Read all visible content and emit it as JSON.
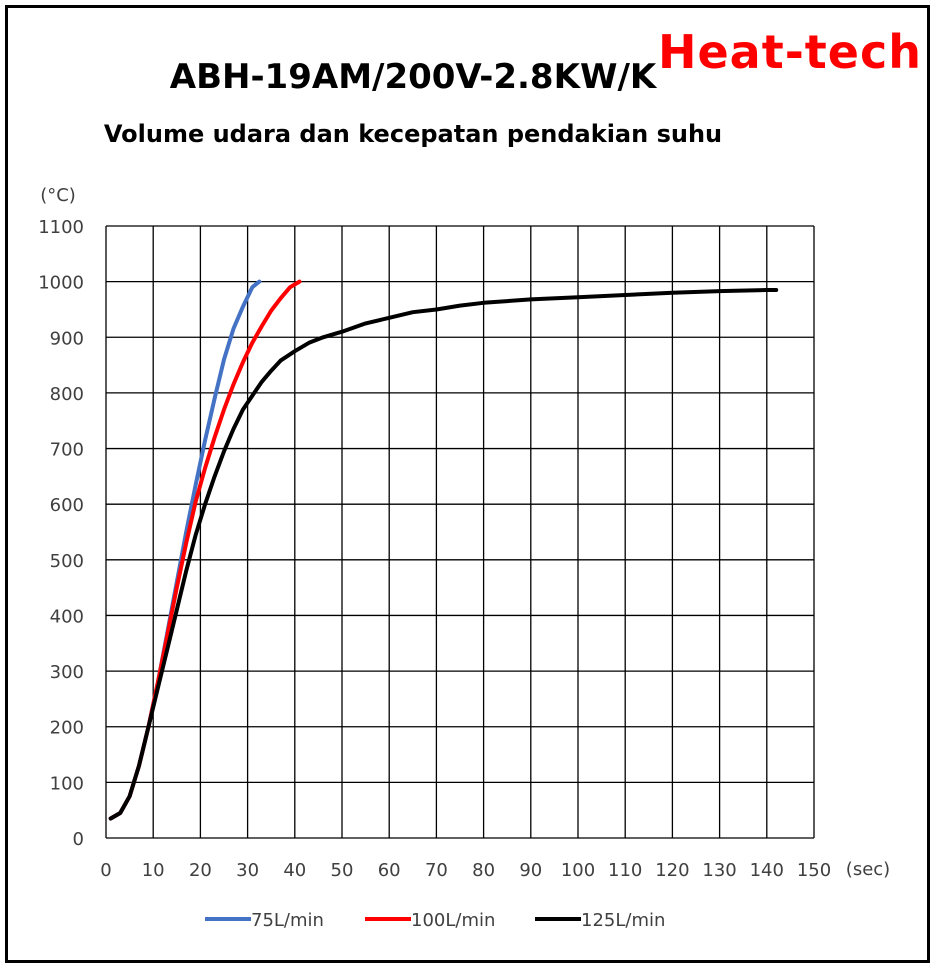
{
  "chart_data": {
    "type": "line",
    "title": "ABH-19AM/200V-2.8KW/K",
    "subtitle": "Volume udara dan kecepatan pendakian suhu",
    "brand": "Heat-tech",
    "brand_color": "#ff0000",
    "ylabel": "(°C)",
    "xlabel": "(sec)",
    "xlim": [
      0,
      150
    ],
    "ylim": [
      0,
      1100
    ],
    "x_ticks": [
      0,
      10,
      20,
      30,
      40,
      50,
      60,
      70,
      80,
      90,
      100,
      110,
      120,
      130,
      140,
      150
    ],
    "y_ticks": [
      0,
      100,
      200,
      300,
      400,
      500,
      600,
      700,
      800,
      900,
      1000,
      1100
    ],
    "grid": true,
    "legend_position": "bottom",
    "series": [
      {
        "name": "75L/min",
        "color": "#4472c4",
        "x": [
          1,
          3,
          5,
          7,
          9,
          11,
          13,
          15,
          17,
          19,
          21,
          23,
          25,
          27,
          29,
          31,
          32.5
        ],
        "y": [
          35,
          45,
          75,
          130,
          200,
          280,
          370,
          460,
          550,
          635,
          715,
          790,
          860,
          915,
          955,
          990,
          1000
        ]
      },
      {
        "name": "100L/min",
        "color": "#ff0000",
        "x": [
          1,
          3,
          5,
          7,
          9,
          11,
          13,
          15,
          17,
          19,
          21,
          23,
          25,
          27,
          29,
          31,
          33,
          35,
          37,
          39,
          41
        ],
        "y": [
          35,
          45,
          75,
          130,
          200,
          280,
          365,
          450,
          530,
          605,
          665,
          720,
          770,
          815,
          855,
          890,
          920,
          948,
          970,
          990,
          1000
        ]
      },
      {
        "name": "125L/min",
        "color": "#000000",
        "x": [
          1,
          3,
          5,
          7,
          9,
          11,
          13,
          15,
          17,
          19,
          21,
          23,
          25,
          27,
          29,
          31,
          33,
          35,
          37,
          40,
          43,
          46,
          50,
          55,
          60,
          65,
          70,
          75,
          80,
          90,
          100,
          110,
          120,
          130,
          140,
          142
        ],
        "y": [
          35,
          45,
          75,
          130,
          200,
          270,
          340,
          410,
          480,
          545,
          600,
          650,
          695,
          735,
          770,
          795,
          820,
          840,
          858,
          875,
          890,
          900,
          910,
          925,
          935,
          945,
          950,
          957,
          962,
          968,
          972,
          976,
          980,
          983,
          985,
          985
        ]
      }
    ]
  }
}
